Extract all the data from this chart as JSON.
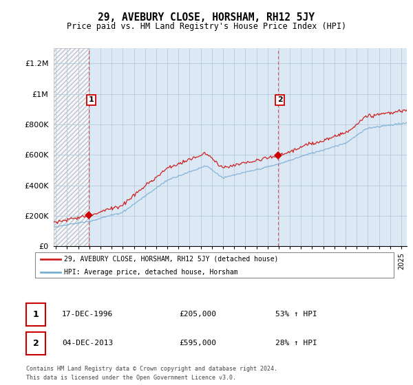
{
  "title": "29, AVEBURY CLOSE, HORSHAM, RH12 5JY",
  "subtitle": "Price paid vs. HM Land Registry's House Price Index (HPI)",
  "ylabel_ticks": [
    "£0",
    "£200K",
    "£400K",
    "£600K",
    "£800K",
    "£1M",
    "£1.2M"
  ],
  "ytick_values": [
    0,
    200000,
    400000,
    600000,
    800000,
    1000000,
    1200000
  ],
  "ylim": [
    0,
    1300000
  ],
  "xlim_start": 1993.8,
  "xlim_end": 2025.5,
  "background_color": "#dce9f5",
  "hatch_region_end": 1996.97,
  "grid_color": "#b8cfe0",
  "sale1_date": 1996.97,
  "sale1_price": 205000,
  "sale2_date": 2013.92,
  "sale2_price": 595000,
  "vline_color": "#cc0000",
  "dot_color": "#cc0000",
  "hpi_line_color": "#7aafd4",
  "price_line_color": "#cc2222",
  "legend_label_price": "29, AVEBURY CLOSE, HORSHAM, RH12 5JY (detached house)",
  "legend_label_hpi": "HPI: Average price, detached house, Horsham",
  "annotation1_date": "17-DEC-1996",
  "annotation1_price": "£205,000",
  "annotation1_hpi": "53% ↑ HPI",
  "annotation2_date": "04-DEC-2013",
  "annotation2_price": "£595,000",
  "annotation2_hpi": "28% ↑ HPI",
  "footer": "Contains HM Land Registry data © Crown copyright and database right 2024.\nThis data is licensed under the Open Government Licence v3.0.",
  "xtick_years": [
    1994,
    1995,
    1996,
    1997,
    1998,
    1999,
    2000,
    2001,
    2002,
    2003,
    2004,
    2005,
    2006,
    2007,
    2008,
    2009,
    2010,
    2011,
    2012,
    2013,
    2014,
    2015,
    2016,
    2017,
    2018,
    2019,
    2020,
    2021,
    2022,
    2023,
    2024,
    2025
  ]
}
